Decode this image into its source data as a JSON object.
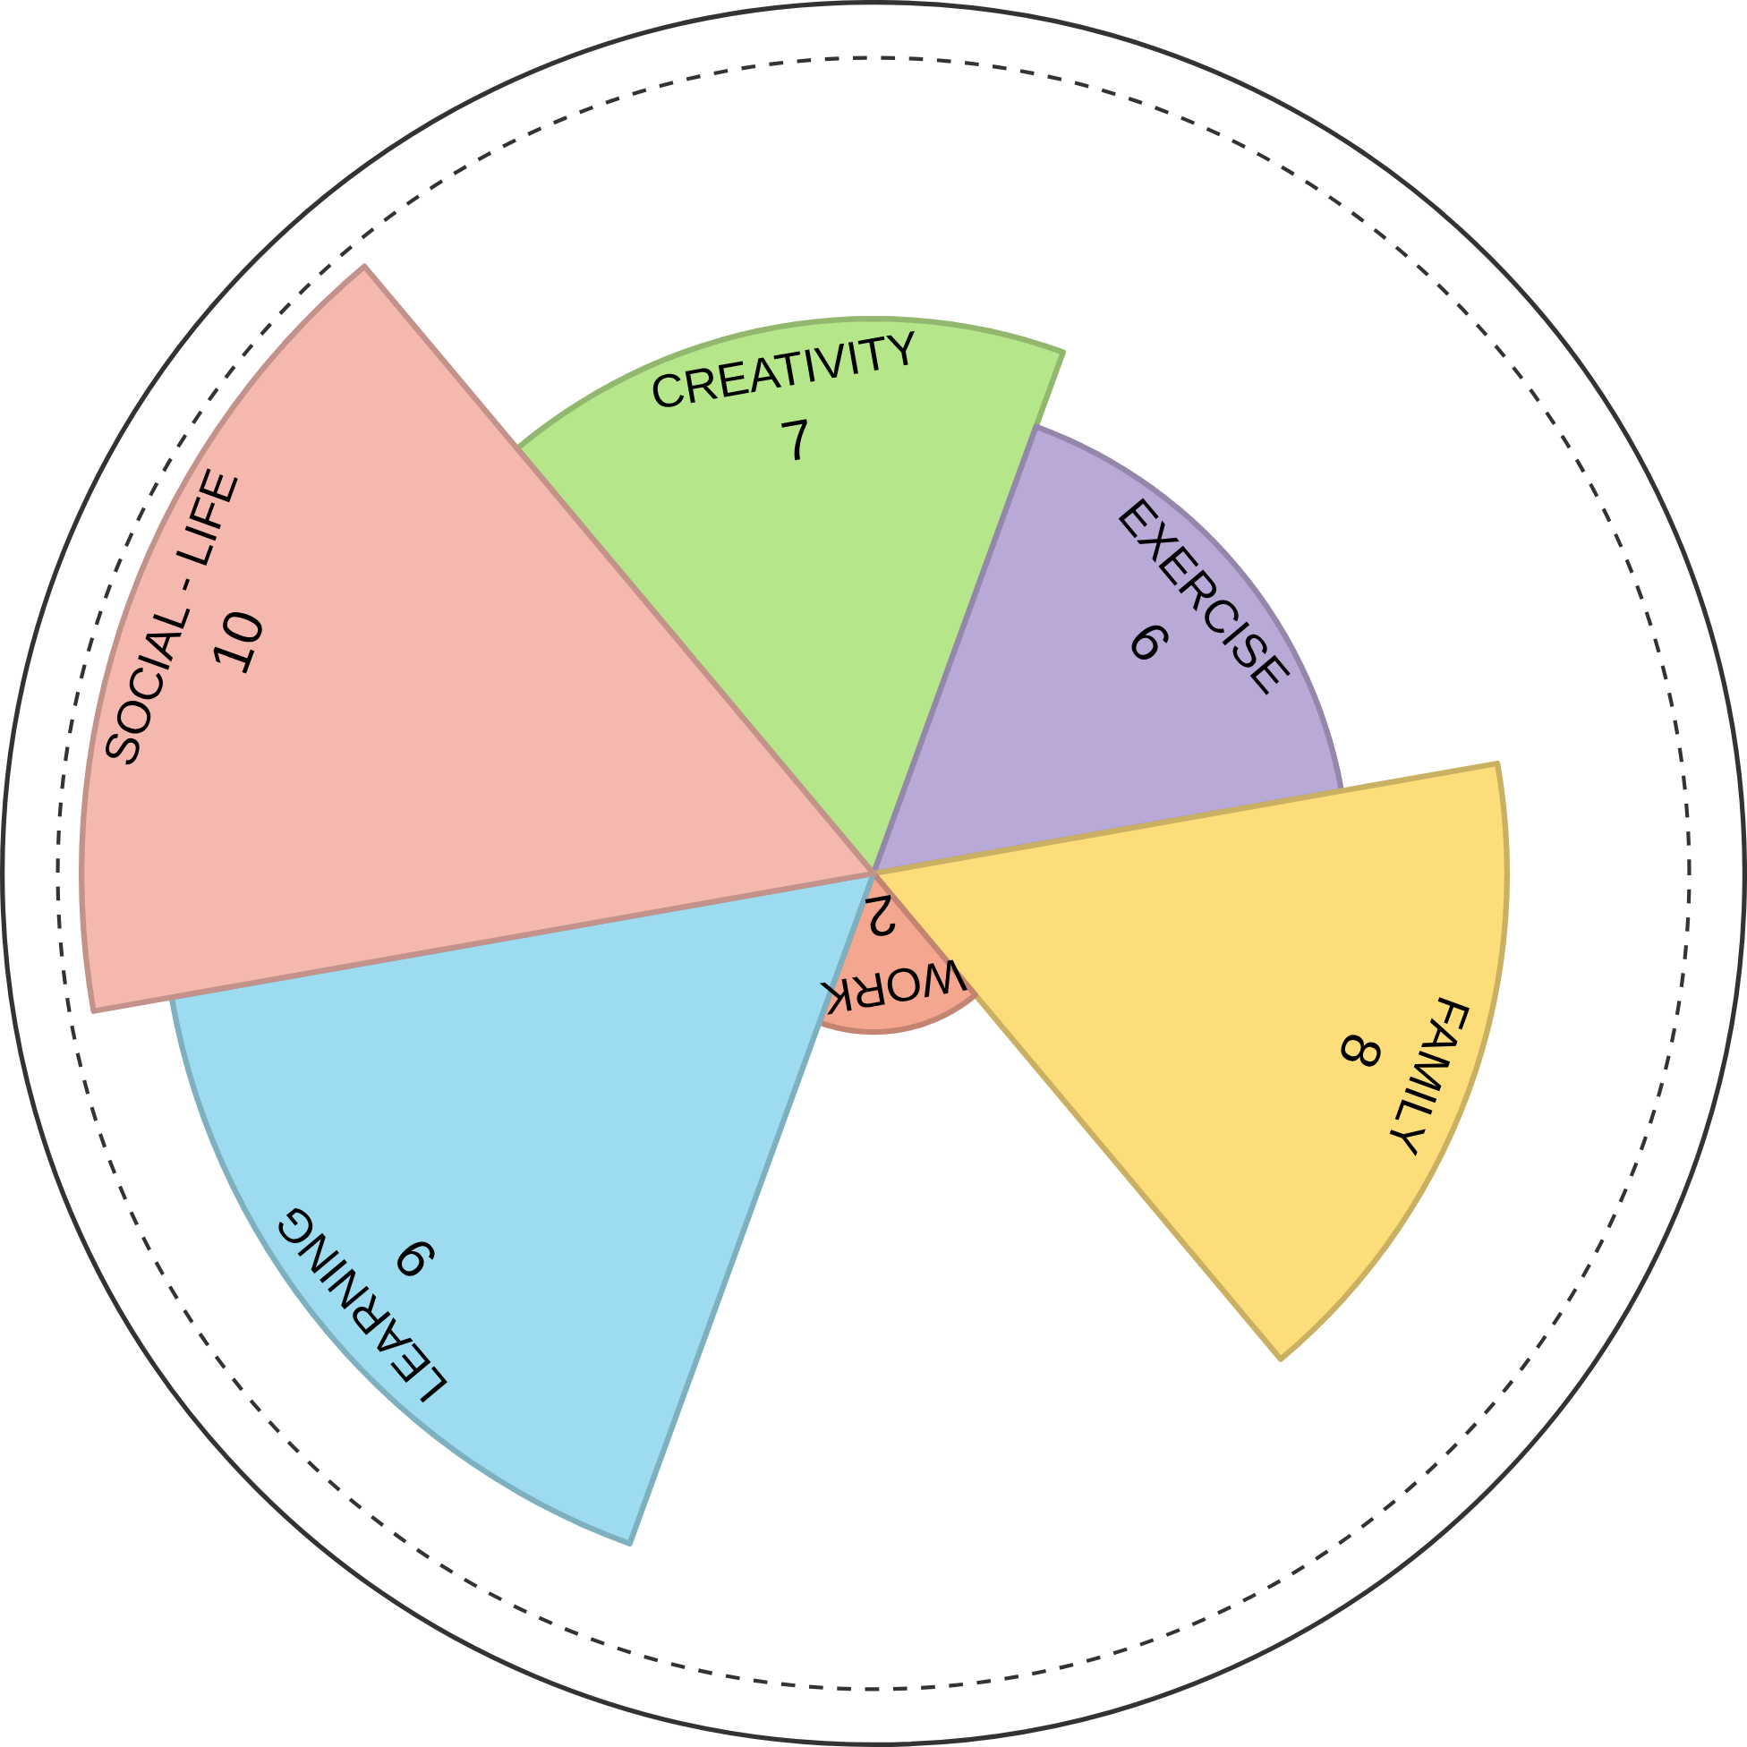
{
  "chart_data": {
    "type": "other",
    "categories": [
      "CREATIVITY",
      "EXERCISE",
      "FAMILY",
      "WORK",
      "LEARNING",
      "SOCIAL - LIFE"
    ],
    "values": [
      7,
      6,
      8,
      2,
      9,
      10
    ],
    "colors": [
      "#b5e68a",
      "#b9a9d6",
      "#fddc7a",
      "#f4a68e",
      "#9ddcf0",
      "#f4b8ae"
    ],
    "data_labels": true
  }
}
